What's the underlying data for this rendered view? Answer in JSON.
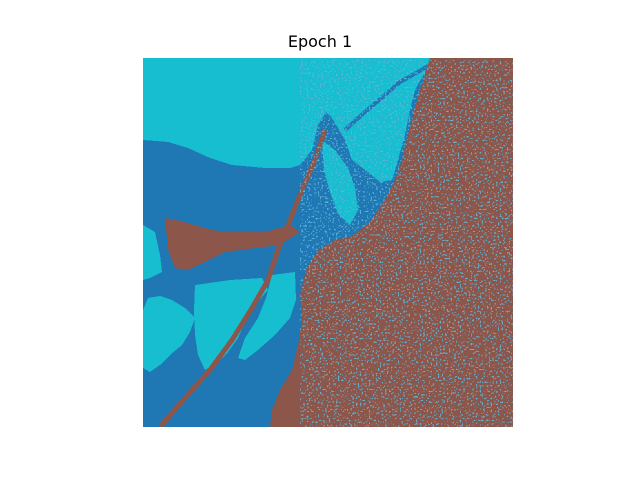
{
  "chart_data": {
    "type": "heatmap",
    "title": "Epoch 1",
    "xlabel": "",
    "ylabel": "",
    "axes_visible": false,
    "grid": false,
    "legend": "none",
    "grid_size": [
      92,
      92
    ],
    "classes": [
      {
        "id": 0,
        "color": "#1f77b4"
      },
      {
        "id": 1,
        "color": "#17becf"
      },
      {
        "id": 2,
        "color": "#8c564b"
      }
    ]
  }
}
